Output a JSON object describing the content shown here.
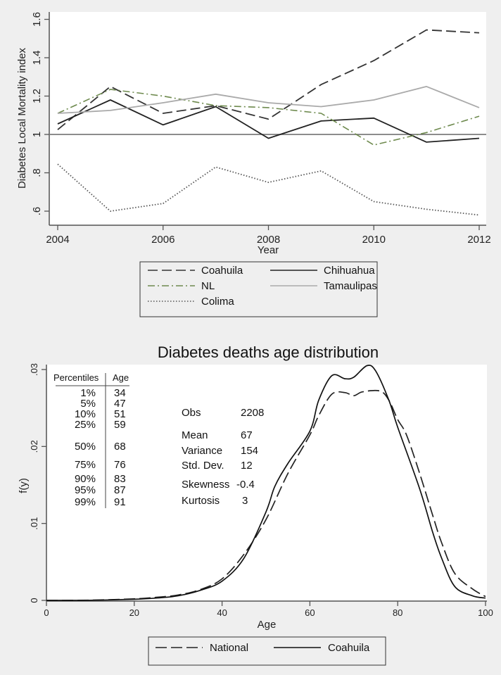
{
  "chart_data": [
    {
      "type": "line",
      "title": "",
      "xlabel": "Year",
      "ylabel": "Diabetes Local Mortality index",
      "x": [
        2004,
        2005,
        2006,
        2007,
        2008,
        2009,
        2010,
        2011,
        2012
      ],
      "xlim": [
        2004,
        2012
      ],
      "ylim": [
        0.55,
        1.62
      ],
      "xticks": [
        2004,
        2006,
        2008,
        2010,
        2012
      ],
      "xtick_labels": [
        "2004",
        "2006",
        "2008",
        "2010",
        "2012"
      ],
      "yticks": [
        0.6,
        0.8,
        1.0,
        1.2,
        1.4,
        1.6
      ],
      "ytick_labels": [
        ".6",
        ".8",
        "1",
        "1.2",
        "1.4",
        "1.6"
      ],
      "reference_line": 1.0,
      "grid": false,
      "legend_position": "bottom",
      "series": [
        {
          "name": "Coahuila",
          "style": "dashed",
          "color": "#333333",
          "values": [
            1.025,
            1.25,
            1.11,
            1.15,
            1.08,
            1.26,
            1.385,
            1.545,
            1.53
          ]
        },
        {
          "name": "Chihuahua",
          "style": "solid",
          "color": "#222222",
          "values": [
            1.055,
            1.18,
            1.05,
            1.145,
            0.98,
            1.07,
            1.085,
            0.96,
            0.98
          ]
        },
        {
          "name": "NL",
          "style": "dashdot",
          "color": "#6e8a4e",
          "values": [
            1.11,
            1.235,
            1.2,
            1.15,
            1.14,
            1.11,
            0.945,
            1.01,
            1.095
          ]
        },
        {
          "name": "Tamaulipas",
          "style": "solid",
          "color": "#aaaaaa",
          "values": [
            1.11,
            1.125,
            1.165,
            1.21,
            1.165,
            1.145,
            1.18,
            1.25,
            1.14
          ]
        },
        {
          "name": "Colima",
          "style": "dotted",
          "color": "#555555",
          "values": [
            0.845,
            0.6,
            0.64,
            0.83,
            0.75,
            0.81,
            0.65,
            0.61,
            0.58
          ]
        }
      ]
    },
    {
      "type": "line",
      "title": "Diabetes deaths age distribution",
      "xlabel": "Age",
      "ylabel": "f(y)",
      "xlim": [
        0,
        100
      ],
      "ylim": [
        0,
        0.03
      ],
      "xticks": [
        0,
        20,
        40,
        60,
        80,
        100
      ],
      "xtick_labels": [
        "0",
        "20",
        "40",
        "60",
        "80",
        "100"
      ],
      "yticks": [
        0,
        0.01,
        0.02,
        0.03
      ],
      "ytick_labels": [
        "0",
        ".01",
        ".02",
        ".03"
      ],
      "grid": false,
      "legend_position": "bottom",
      "series": [
        {
          "name": "National",
          "style": "dashed",
          "color": "#222222",
          "x": [
            0,
            10,
            20,
            25,
            30,
            35,
            40,
            45,
            50,
            55,
            60,
            62,
            65,
            68,
            70,
            72,
            76,
            78,
            80,
            82,
            85,
            88,
            90,
            93,
            97,
            100
          ],
          "values": [
            0,
            3e-05,
            0.0002,
            0.0004,
            0.0007,
            0.0014,
            0.0028,
            0.006,
            0.0105,
            0.0165,
            0.0215,
            0.024,
            0.0268,
            0.027,
            0.0266,
            0.0271,
            0.0272,
            0.026,
            0.0235,
            0.0215,
            0.0165,
            0.011,
            0.0075,
            0.0035,
            0.0015,
            0.0005
          ]
        },
        {
          "name": "Coahuila",
          "style": "solid",
          "color": "#111111",
          "x": [
            0,
            10,
            20,
            25,
            30,
            35,
            40,
            45,
            50,
            52,
            55,
            60,
            62,
            65,
            68,
            70,
            73,
            75,
            78,
            80,
            85,
            88,
            90,
            93,
            97,
            100
          ],
          "values": [
            0,
            2e-05,
            0.00015,
            0.0003,
            0.0006,
            0.0013,
            0.0025,
            0.0055,
            0.0115,
            0.0148,
            0.0178,
            0.022,
            0.026,
            0.0292,
            0.0288,
            0.029,
            0.0305,
            0.0298,
            0.026,
            0.0225,
            0.0145,
            0.0088,
            0.0055,
            0.0018,
            0.0006,
            0.0003
          ]
        }
      ],
      "annotations": {
        "percentiles_table": {
          "headers": [
            "Percentiles",
            "Age"
          ],
          "rows": [
            [
              "1%",
              "34"
            ],
            [
              "5%",
              "47"
            ],
            [
              "10%",
              "51"
            ],
            [
              "25%",
              "59"
            ],
            [
              "50%",
              "68"
            ],
            [
              "75%",
              "76"
            ],
            [
              "90%",
              "83"
            ],
            [
              "95%",
              "87"
            ],
            [
              "99%",
              "91"
            ]
          ]
        },
        "summary_stats": [
          {
            "label": "Obs",
            "value": "2208"
          },
          {
            "label": "Mean",
            "value": "67"
          },
          {
            "label": "Variance",
            "value": "154"
          },
          {
            "label": "Std. Dev.",
            "value": "12"
          },
          {
            "label": "Skewness",
            "value": "-0.4"
          },
          {
            "label": "Kurtosis",
            "value": "3"
          }
        ]
      }
    }
  ]
}
